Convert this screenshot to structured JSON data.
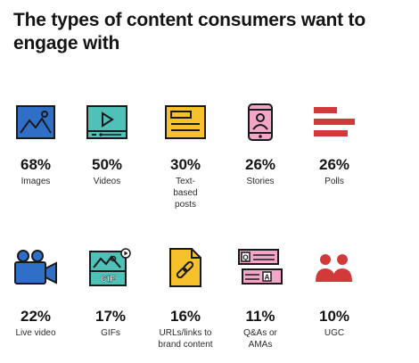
{
  "title": "The types of content consumers want to engage with",
  "items": [
    {
      "percent": "68%",
      "label": "Images",
      "icon": "image-icon"
    },
    {
      "percent": "50%",
      "label": "Videos",
      "icon": "video-player-icon"
    },
    {
      "percent": "30%",
      "label": "Text-based posts",
      "icon": "text-post-icon"
    },
    {
      "percent": "26%",
      "label": "Stories",
      "icon": "phone-story-icon"
    },
    {
      "percent": "26%",
      "label": "Polls",
      "icon": "poll-bars-icon"
    },
    {
      "percent": "22%",
      "label": "Live video",
      "icon": "video-camera-icon"
    },
    {
      "percent": "17%",
      "label": "GIFs",
      "icon": "gif-icon",
      "icon_text": "GIF"
    },
    {
      "percent": "16%",
      "label": "URLs/links to brand content",
      "icon": "link-document-icon"
    },
    {
      "percent": "11%",
      "label": "Q&As or AMAs",
      "icon": "qa-bubbles-icon",
      "icon_text_q": "Q",
      "icon_text_a": "A"
    },
    {
      "percent": "10%",
      "label": "UGC",
      "icon": "people-icon"
    }
  ],
  "colors": {
    "blue": "#2f6fc8",
    "teal": "#4fc1b7",
    "yellow": "#f6c12b",
    "pink": "#f4a6c7",
    "red": "#d23a3a",
    "outline": "#1a1a1a"
  }
}
